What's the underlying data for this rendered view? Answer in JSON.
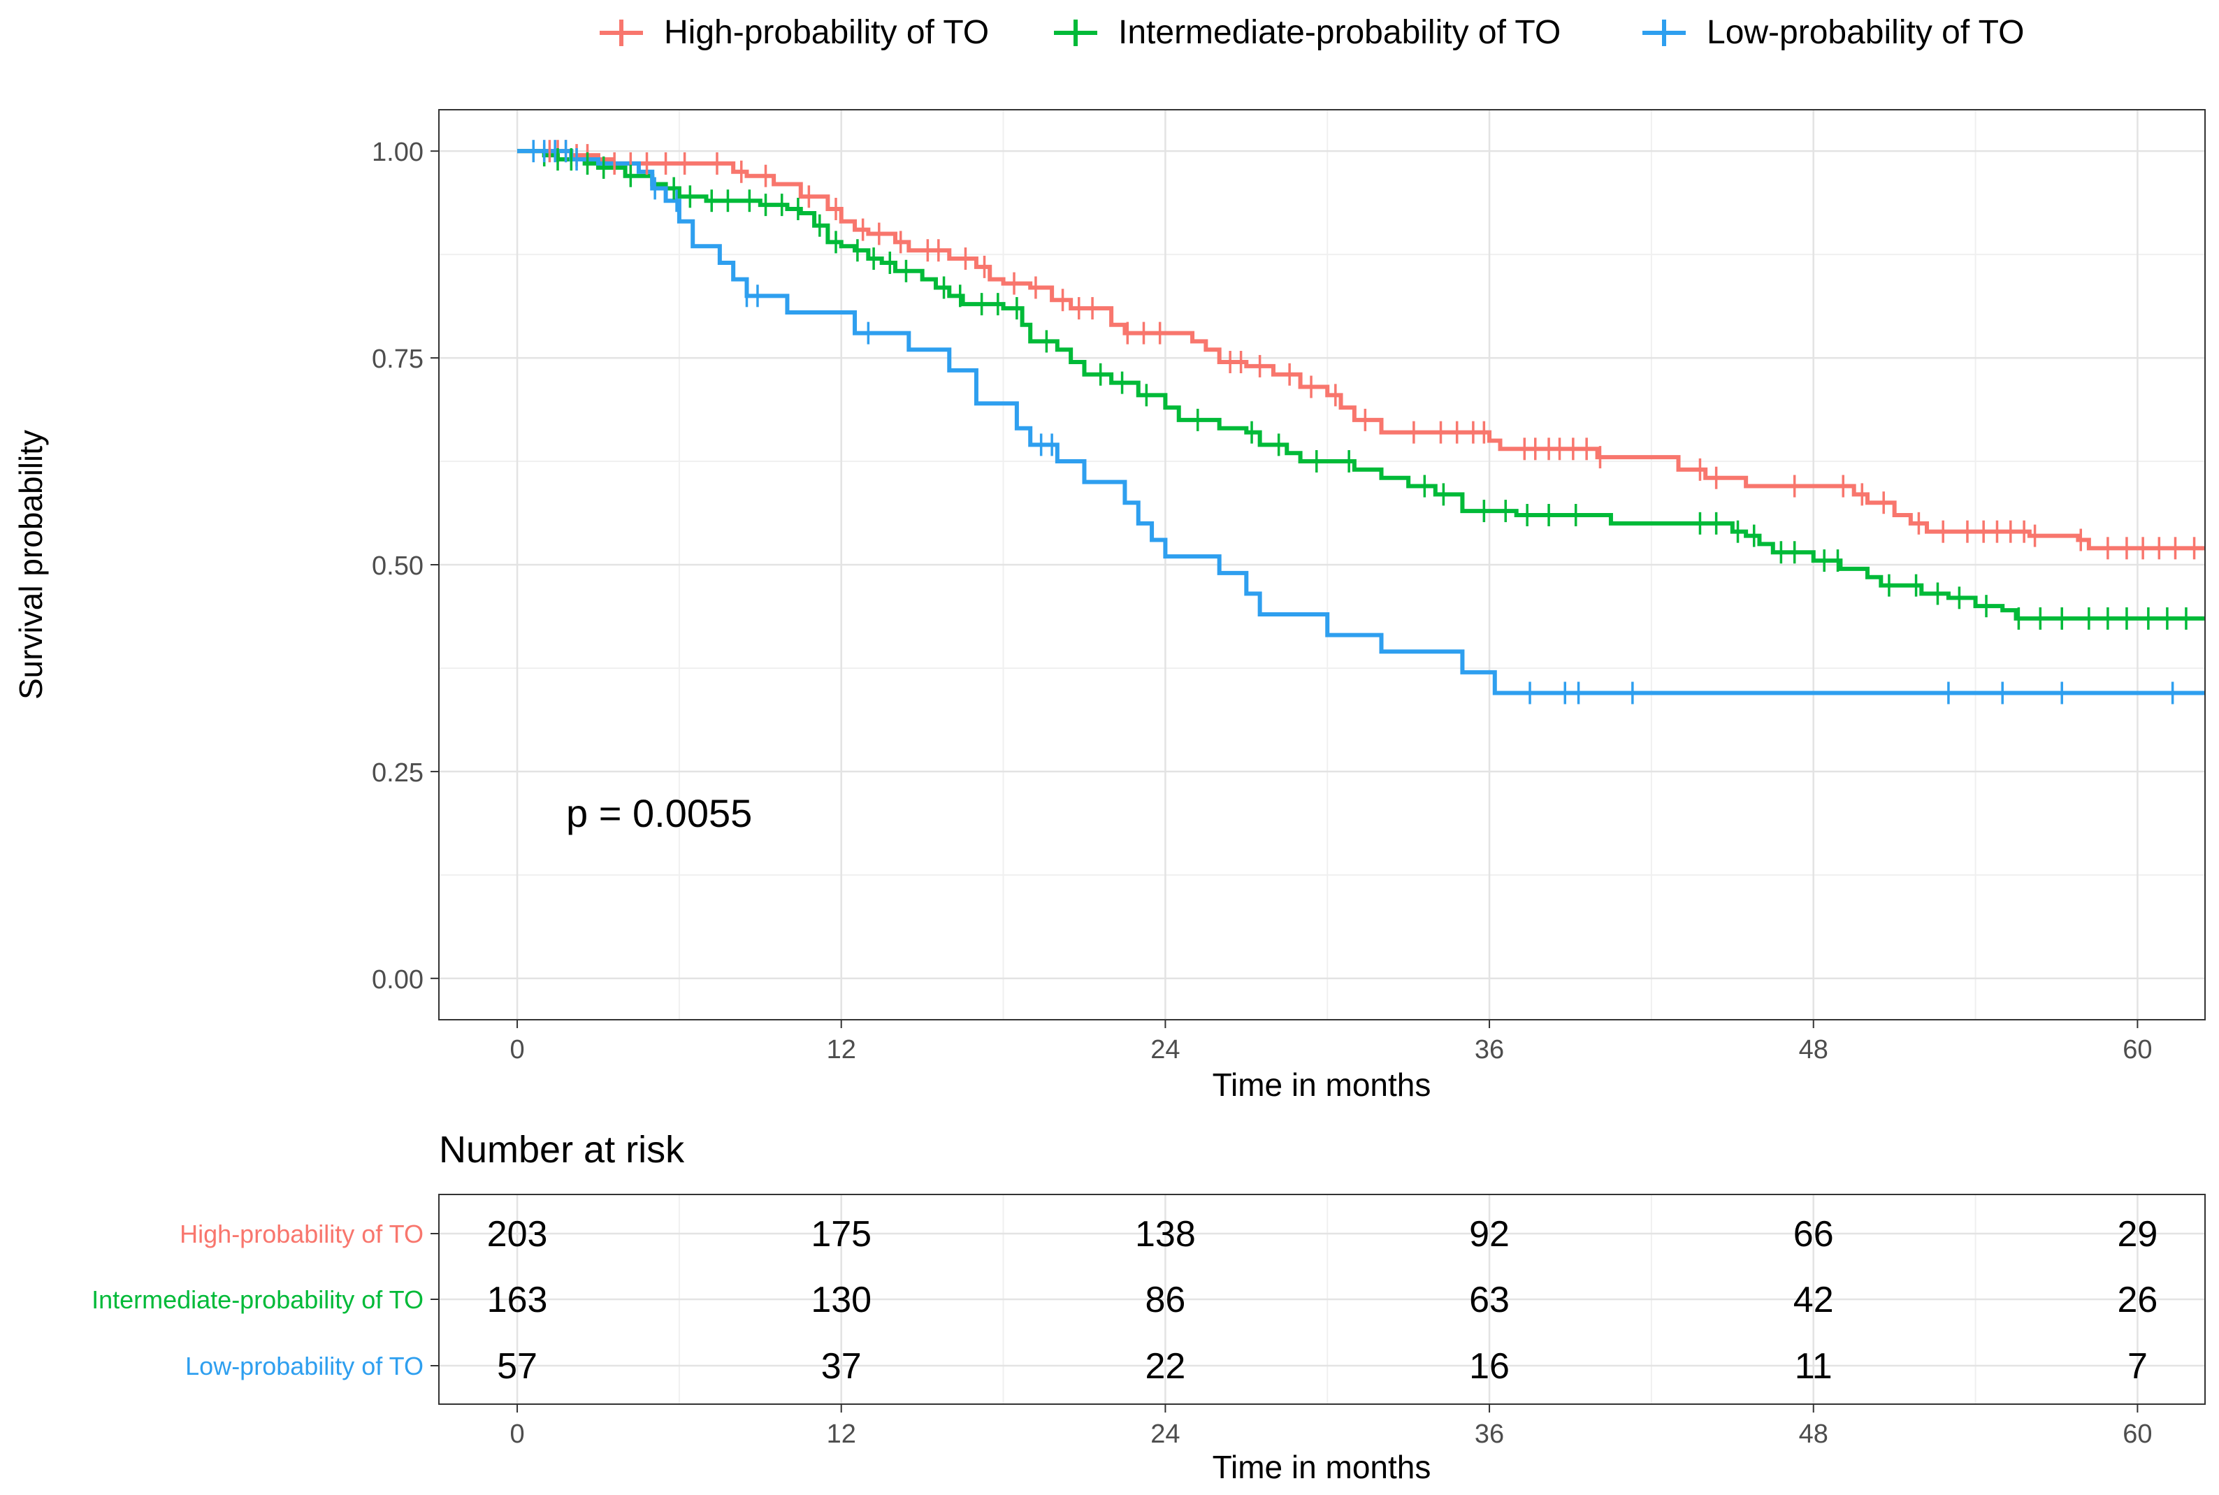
{
  "chart_data": [
    {
      "type": "line",
      "subtype": "kaplan-meier-step",
      "title": "",
      "xlabel": "Time in months",
      "ylabel": "Survival probability",
      "xlim": [
        -2.9,
        62.5
      ],
      "ylim": [
        -0.05,
        1.05
      ],
      "xticks": [
        0,
        12,
        24,
        36,
        48,
        60
      ],
      "xtick_labels": [
        "0",
        "12",
        "24",
        "36",
        "48",
        "60"
      ],
      "yticks": [
        0,
        0.25,
        0.5,
        0.75,
        1.0
      ],
      "ytick_labels": [
        "0.00",
        "0.25",
        "0.50",
        "0.75",
        "1.00"
      ],
      "grid": true,
      "legend_position": "top",
      "annotation": "p = 0.0055",
      "series": [
        {
          "name": "High-probability of TO",
          "color": "#F8766D",
          "steps": [
            [
              0,
              1.0
            ],
            [
              2,
              0.995
            ],
            [
              3,
              0.99
            ],
            [
              3.5,
              0.985
            ],
            [
              8,
              0.975
            ],
            [
              8.5,
              0.97
            ],
            [
              9.5,
              0.96
            ],
            [
              10.5,
              0.945
            ],
            [
              11.5,
              0.93
            ],
            [
              12,
              0.915
            ],
            [
              12.5,
              0.905
            ],
            [
              13,
              0.9
            ],
            [
              14,
              0.89
            ],
            [
              14.5,
              0.88
            ],
            [
              16,
              0.87
            ],
            [
              17,
              0.86
            ],
            [
              17.5,
              0.845
            ],
            [
              18,
              0.84
            ],
            [
              19,
              0.835
            ],
            [
              19.8,
              0.82
            ],
            [
              20.5,
              0.81
            ],
            [
              22,
              0.79
            ],
            [
              22.5,
              0.78
            ],
            [
              25,
              0.77
            ],
            [
              25.5,
              0.76
            ],
            [
              26,
              0.745
            ],
            [
              27,
              0.74
            ],
            [
              28,
              0.73
            ],
            [
              29,
              0.715
            ],
            [
              30,
              0.705
            ],
            [
              30.5,
              0.69
            ],
            [
              31,
              0.675
            ],
            [
              32,
              0.66
            ],
            [
              36,
              0.65
            ],
            [
              36.4,
              0.64
            ],
            [
              40,
              0.63
            ],
            [
              43,
              0.615
            ],
            [
              44,
              0.605
            ],
            [
              45.5,
              0.595
            ],
            [
              49.5,
              0.585
            ],
            [
              50,
              0.575
            ],
            [
              51,
              0.56
            ],
            [
              51.6,
              0.55
            ],
            [
              52.2,
              0.54
            ],
            [
              56,
              0.535
            ],
            [
              57.8,
              0.53
            ],
            [
              58.2,
              0.52
            ],
            [
              62.5,
              0.52
            ]
          ],
          "censor_x": [
            1.2,
            1.5,
            1.8,
            2.2,
            2.6,
            3.6,
            4.2,
            4.8,
            5.5,
            6.2,
            7.4,
            8.3,
            9.2,
            10.8,
            11.8,
            12.8,
            13.4,
            14.2,
            15.2,
            15.6,
            16.6,
            17.3,
            18.4,
            19.2,
            20.2,
            20.8,
            21.3,
            22.6,
            23.2,
            23.8,
            26.4,
            26.8,
            27.5,
            28.6,
            29.4,
            30.3,
            31.4,
            33.2,
            34.2,
            34.8,
            35.4,
            35.8,
            37.3,
            37.7,
            38.2,
            38.6,
            39.1,
            39.6,
            40.1,
            43.8,
            44.4,
            47.3,
            49.1,
            49.8,
            50.6,
            51.9,
            52.8,
            53.7,
            54.3,
            54.8,
            55.3,
            55.8,
            56.2,
            57.9,
            58.9,
            59.6,
            60.2,
            60.8,
            61.4,
            62.1
          ]
        },
        {
          "name": "Intermediate-probability of TO",
          "color": "#00BA38",
          "steps": [
            [
              0,
              1.0
            ],
            [
              1,
              0.995
            ],
            [
              1.5,
              0.99
            ],
            [
              2.5,
              0.985
            ],
            [
              3,
              0.98
            ],
            [
              4,
              0.97
            ],
            [
              5,
              0.96
            ],
            [
              5.5,
              0.955
            ],
            [
              6,
              0.945
            ],
            [
              7,
              0.94
            ],
            [
              9,
              0.935
            ],
            [
              10,
              0.93
            ],
            [
              10.5,
              0.925
            ],
            [
              11,
              0.91
            ],
            [
              11.5,
              0.89
            ],
            [
              12,
              0.885
            ],
            [
              12.5,
              0.88
            ],
            [
              13,
              0.87
            ],
            [
              13.5,
              0.865
            ],
            [
              14,
              0.855
            ],
            [
              15,
              0.845
            ],
            [
              15.5,
              0.835
            ],
            [
              16,
              0.825
            ],
            [
              16.5,
              0.815
            ],
            [
              18,
              0.81
            ],
            [
              18.7,
              0.79
            ],
            [
              19,
              0.77
            ],
            [
              20,
              0.76
            ],
            [
              20.5,
              0.745
            ],
            [
              21,
              0.73
            ],
            [
              22,
              0.72
            ],
            [
              23,
              0.705
            ],
            [
              24,
              0.69
            ],
            [
              24.5,
              0.675
            ],
            [
              26,
              0.665
            ],
            [
              27,
              0.66
            ],
            [
              27.5,
              0.645
            ],
            [
              28.5,
              0.635
            ],
            [
              29,
              0.625
            ],
            [
              31,
              0.615
            ],
            [
              32,
              0.605
            ],
            [
              33,
              0.595
            ],
            [
              34,
              0.585
            ],
            [
              35,
              0.565
            ],
            [
              37,
              0.56
            ],
            [
              40.5,
              0.55
            ],
            [
              43,
              0.55
            ],
            [
              45,
              0.54
            ],
            [
              45.5,
              0.535
            ],
            [
              46,
              0.525
            ],
            [
              46.5,
              0.515
            ],
            [
              48,
              0.505
            ],
            [
              49,
              0.495
            ],
            [
              50,
              0.485
            ],
            [
              50.5,
              0.475
            ],
            [
              52,
              0.465
            ],
            [
              53,
              0.46
            ],
            [
              54,
              0.45
            ],
            [
              55,
              0.445
            ],
            [
              55.5,
              0.435
            ],
            [
              62.5,
              0.435
            ]
          ],
          "censor_x": [
            1,
            1.5,
            2,
            2.6,
            3.2,
            4.2,
            5.8,
            6.4,
            7.2,
            7.8,
            8.6,
            9.2,
            9.8,
            10.4,
            11.2,
            11.8,
            12.6,
            13.2,
            13.8,
            14.4,
            15.8,
            16.4,
            17.2,
            17.8,
            18.5,
            19.6,
            21.6,
            22.4,
            23.3,
            25.2,
            27.2,
            28.2,
            29.6,
            30.8,
            33.6,
            34.3,
            35.8,
            36.6,
            37.4,
            38.2,
            39.2,
            43.8,
            44.4,
            45.2,
            45.8,
            46.8,
            47.3,
            48.4,
            48.9,
            50.8,
            51.8,
            52.6,
            53.4,
            54.4,
            55.6,
            56.4,
            57.2,
            58.2,
            58.9,
            59.6,
            60.4,
            61.1,
            61.8
          ]
        },
        {
          "name": "Low-probability of TO",
          "color": "#2E9FEF",
          "steps": [
            [
              0,
              1.0
            ],
            [
              2,
              0.99
            ],
            [
              3,
              0.985
            ],
            [
              4.5,
              0.975
            ],
            [
              5,
              0.955
            ],
            [
              5.5,
              0.94
            ],
            [
              6,
              0.915
            ],
            [
              6.5,
              0.885
            ],
            [
              7.5,
              0.865
            ],
            [
              8,
              0.845
            ],
            [
              8.5,
              0.825
            ],
            [
              10,
              0.805
            ],
            [
              12.5,
              0.78
            ],
            [
              14.5,
              0.76
            ],
            [
              16,
              0.735
            ],
            [
              17,
              0.695
            ],
            [
              18.5,
              0.665
            ],
            [
              19,
              0.645
            ],
            [
              20,
              0.625
            ],
            [
              21,
              0.6
            ],
            [
              22.5,
              0.575
            ],
            [
              23,
              0.55
            ],
            [
              23.5,
              0.53
            ],
            [
              24,
              0.51
            ],
            [
              26,
              0.49
            ],
            [
              27,
              0.465
            ],
            [
              27.5,
              0.44
            ],
            [
              30,
              0.415
            ],
            [
              32,
              0.395
            ],
            [
              35,
              0.37
            ],
            [
              36.2,
              0.345
            ],
            [
              62.5,
              0.345
            ]
          ],
          "censor_x": [
            0.6,
            1.0,
            1.4,
            1.8,
            2.2,
            5.1,
            5.9,
            8.5,
            8.9,
            13.0,
            19.4,
            19.8,
            37.5,
            38.8,
            39.3,
            41.3,
            53.0,
            55.0,
            57.2,
            61.3
          ]
        }
      ]
    },
    {
      "type": "table",
      "title": "Number at risk",
      "xlabel": "Time in months",
      "xticks": [
        0,
        12,
        24,
        36,
        48,
        60
      ],
      "xtick_labels": [
        "0",
        "12",
        "24",
        "36",
        "48",
        "60"
      ],
      "rows": [
        {
          "name": "High-probability of TO",
          "color": "#F8766D",
          "values": [
            "203",
            "175",
            "138",
            "92",
            "66",
            "29"
          ]
        },
        {
          "name": "Intermediate-probability of TO",
          "color": "#00BA38",
          "values": [
            "163",
            "130",
            "86",
            "63",
            "42",
            "26"
          ]
        },
        {
          "name": "Low-probability of TO",
          "color": "#2E9FEF",
          "values": [
            "57",
            "37",
            "22",
            "16",
            "11",
            "7"
          ]
        }
      ]
    }
  ]
}
